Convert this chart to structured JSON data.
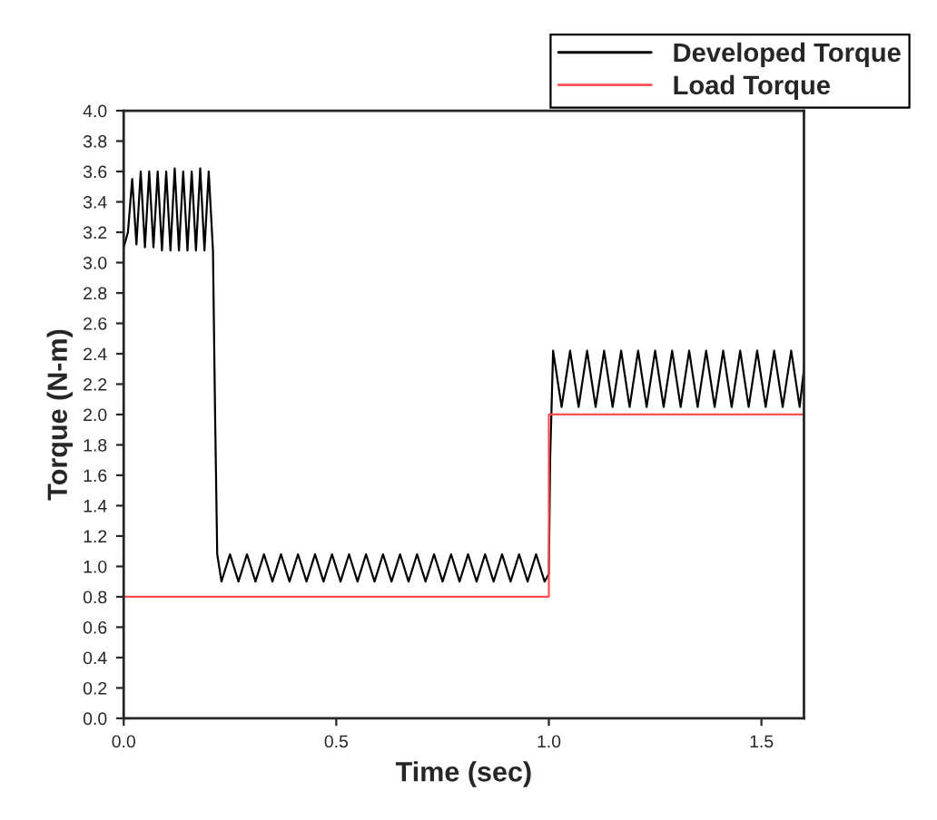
{
  "chart_data": {
    "type": "line",
    "xlabel": "Time (sec)",
    "ylabel": "Torque (N-m)",
    "xlim": [
      0,
      1.6
    ],
    "xticks": [
      {
        "value": 0,
        "label": "0.0"
      },
      0.5,
      {
        "value": 1,
        "label": "1.0"
      },
      1.5
    ],
    "ylim": [
      0,
      4
    ],
    "yticks": [
      {
        "value": 0,
        "label": "0.0"
      },
      0.2,
      0.4,
      0.6,
      0.8,
      {
        "value": 1,
        "label": "1.0"
      },
      1.2,
      1.4,
      1.6,
      1.8,
      {
        "value": 2,
        "label": "2.0"
      },
      2.2,
      2.4,
      2.6,
      2.8,
      {
        "value": 3,
        "label": "3.0"
      },
      3.2,
      3.4,
      3.6,
      3.8,
      {
        "value": 4,
        "label": "4.0"
      }
    ],
    "grid": false,
    "legend": "top right",
    "marker": "none",
    "line_style": "solid",
    "series": [
      {
        "name": "Developed Torque",
        "color": "#000000",
        "x": [
          0,
          0.01,
          0.02,
          0.03,
          0.04,
          0.05,
          0.06,
          0.07,
          0.08,
          0.09,
          0.1,
          0.11,
          0.12,
          0.13,
          0.14,
          0.15,
          0.16,
          0.17,
          0.18,
          0.19,
          0.2,
          0.21,
          0.215,
          0.22,
          0.23,
          0.25,
          0.27,
          0.29,
          0.31,
          0.33,
          0.35,
          0.37,
          0.39,
          0.41,
          0.43,
          0.45,
          0.47,
          0.49,
          0.51,
          0.53,
          0.55,
          0.57,
          0.59,
          0.61,
          0.63,
          0.65,
          0.67,
          0.69,
          0.71,
          0.73,
          0.75,
          0.77,
          0.79,
          0.81,
          0.83,
          0.85,
          0.87,
          0.89,
          0.91,
          0.93,
          0.95,
          0.97,
          0.99,
          1.0,
          1.003,
          1.01,
          1.03,
          1.05,
          1.07,
          1.09,
          1.11,
          1.13,
          1.15,
          1.17,
          1.19,
          1.21,
          1.23,
          1.25,
          1.27,
          1.29,
          1.31,
          1.33,
          1.35,
          1.37,
          1.39,
          1.41,
          1.43,
          1.45,
          1.47,
          1.49,
          1.51,
          1.53,
          1.55,
          1.57,
          1.59,
          1.6
        ],
        "values": [
          3.1,
          3.2,
          3.55,
          3.12,
          3.6,
          3.1,
          3.6,
          3.1,
          3.6,
          3.08,
          3.6,
          3.08,
          3.62,
          3.08,
          3.6,
          3.08,
          3.6,
          3.08,
          3.62,
          3.08,
          3.6,
          3.08,
          2.0,
          1.08,
          0.9,
          1.08,
          0.9,
          1.08,
          0.9,
          1.08,
          0.9,
          1.08,
          0.9,
          1.08,
          0.9,
          1.08,
          0.9,
          1.08,
          0.9,
          1.08,
          0.9,
          1.08,
          0.9,
          1.08,
          0.9,
          1.08,
          0.9,
          1.08,
          0.9,
          1.08,
          0.9,
          1.08,
          0.9,
          1.08,
          0.9,
          1.08,
          0.9,
          1.08,
          0.9,
          1.08,
          0.9,
          1.08,
          0.9,
          0.95,
          1.7,
          2.42,
          2.05,
          2.42,
          2.05,
          2.42,
          2.05,
          2.42,
          2.05,
          2.42,
          2.05,
          2.42,
          2.05,
          2.42,
          2.05,
          2.42,
          2.05,
          2.42,
          2.05,
          2.42,
          2.05,
          2.42,
          2.05,
          2.42,
          2.05,
          2.42,
          2.05,
          2.42,
          2.05,
          2.42,
          2.05,
          2.3
        ]
      },
      {
        "name": "Load Torque",
        "color": "#ff5050",
        "type": "step",
        "x": [
          0,
          1.0,
          1.6
        ],
        "values": [
          0.8,
          2.0,
          2.0
        ]
      }
    ]
  }
}
